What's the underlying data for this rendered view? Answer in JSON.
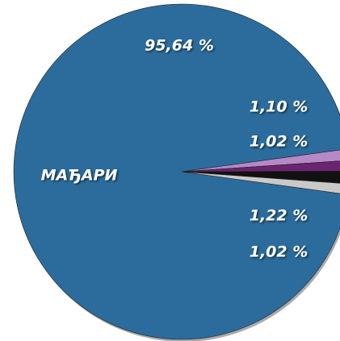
{
  "chart_data": {
    "type": "pie",
    "categories": [
      "МАЂАРИ",
      null,
      null,
      null,
      null
    ],
    "values": [
      95.64,
      1.1,
      1.02,
      1.22,
      1.02
    ],
    "value_labels": [
      "95,64 %",
      "1,10 %",
      "1,02 %",
      "1,22 %",
      "1,02 %"
    ],
    "colors": [
      "#2b6c9c",
      "#b588c6",
      "#6b2471",
      "#111111",
      "#c9c9c9"
    ]
  }
}
